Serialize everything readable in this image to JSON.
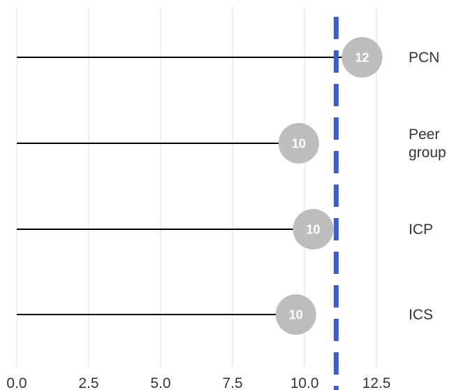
{
  "chart_data": {
    "type": "lollipop",
    "orientation": "horizontal",
    "categories": [
      "PCN",
      "Peer group",
      "ICP",
      "ICS"
    ],
    "category_label_lines": [
      [
        "PCN"
      ],
      [
        "Peer",
        "group"
      ],
      [
        "ICP"
      ],
      [
        "ICS"
      ]
    ],
    "values": [
      12.0,
      9.8,
      10.3,
      9.7
    ],
    "data_labels": [
      "12",
      "10",
      "10",
      "10"
    ],
    "reference_line": {
      "value": 11.1,
      "style": "dashed",
      "color": "#3a5fcd"
    },
    "xlim": [
      0,
      12.5
    ],
    "x_ticks": [
      0,
      2.5,
      5,
      7.5,
      10,
      12.5
    ],
    "x_tick_labels": [
      "0.0",
      "2.5",
      "5.0",
      "7.5",
      "10.0",
      "12.5"
    ],
    "grid": true,
    "colors": {
      "marker": "#bdbdbd",
      "stem": "#000000",
      "grid": "#e6e6e6",
      "label_text": "#ffffff"
    },
    "title": "",
    "xlabel": "",
    "ylabel": ""
  }
}
